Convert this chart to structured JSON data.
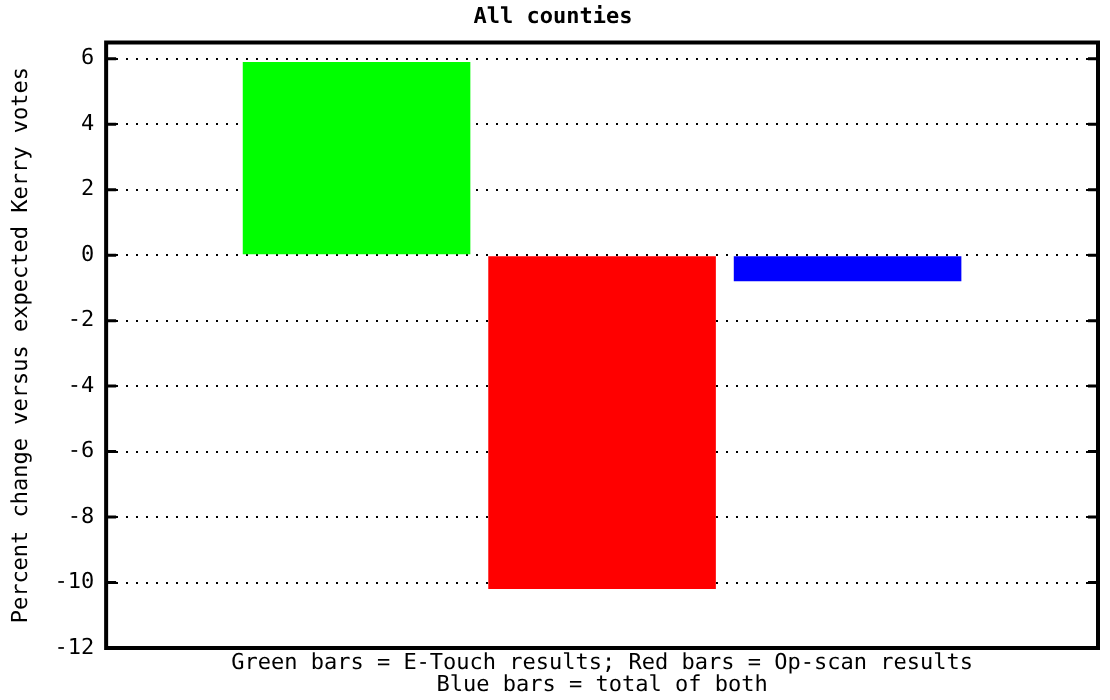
{
  "chart_data": {
    "type": "bar",
    "title": "All counties",
    "xlabel": "Green bars = E-Touch results; Red bars = Op-scan results\nBlue bars = total of both",
    "ylabel": "Percent change versus expected Kerry votes",
    "categories": [
      null,
      null,
      null
    ],
    "values": [
      5.9,
      -10.2,
      -0.8
    ],
    "colors": [
      "#00ff00",
      "#ff0000",
      "#0000ff"
    ],
    "ylim": [
      -12,
      6.5
    ],
    "yticks": [
      -12,
      -10,
      -8,
      -6,
      -4,
      -2,
      0,
      2,
      4,
      6
    ],
    "grid": "y",
    "tick_labels": "y",
    "legend": false
  }
}
